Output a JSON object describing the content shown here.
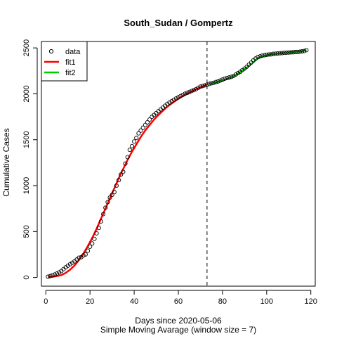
{
  "chart_data": {
    "type": "line",
    "title": "South_Sudan / Gompertz",
    "xlabel": "Days since 2020-05-06",
    "subtitle": "Simple Moving Avarage (window size = 7)",
    "ylabel": "Cumulative Cases",
    "xlim": [
      -2,
      122
    ],
    "ylim": [
      -95,
      2570
    ],
    "x_ticks": [
      0,
      20,
      40,
      60,
      80,
      100,
      120
    ],
    "y_ticks": [
      0,
      500,
      1000,
      1500,
      2000,
      2500
    ],
    "split_x": 73,
    "legend_position": "top-left",
    "colors": {
      "data": "#000000",
      "fit1": "#ff0000",
      "fit2": "#00cc00"
    },
    "series": [
      {
        "name": "data",
        "style": "points",
        "points": [
          [
            1,
            8
          ],
          [
            2,
            15
          ],
          [
            3,
            22
          ],
          [
            4,
            32
          ],
          [
            5,
            42
          ],
          [
            6,
            55
          ],
          [
            7,
            70
          ],
          [
            8,
            90
          ],
          [
            9,
            110
          ],
          [
            10,
            128
          ],
          [
            11,
            145
          ],
          [
            12,
            160
          ],
          [
            13,
            175
          ],
          [
            14,
            195
          ],
          [
            15,
            215
          ],
          [
            16,
            220
          ],
          [
            17,
            240
          ],
          [
            18,
            250
          ],
          [
            19,
            290
          ],
          [
            20,
            335
          ],
          [
            21,
            370
          ],
          [
            22,
            420
          ],
          [
            23,
            480
          ],
          [
            24,
            540
          ],
          [
            25,
            610
          ],
          [
            26,
            690
          ],
          [
            27,
            760
          ],
          [
            28,
            820
          ],
          [
            29,
            870
          ],
          [
            30,
            900
          ],
          [
            31,
            930
          ],
          [
            32,
            1000
          ],
          [
            33,
            1060
          ],
          [
            34,
            1120
          ],
          [
            35,
            1150
          ],
          [
            36,
            1240
          ],
          [
            37,
            1310
          ],
          [
            38,
            1390
          ],
          [
            39,
            1430
          ],
          [
            40,
            1480
          ],
          [
            41,
            1520
          ],
          [
            42,
            1570
          ],
          [
            43,
            1600
          ],
          [
            44,
            1630
          ],
          [
            45,
            1660
          ],
          [
            46,
            1690
          ],
          [
            47,
            1720
          ],
          [
            48,
            1750
          ],
          [
            49,
            1770
          ],
          [
            50,
            1790
          ],
          [
            51,
            1810
          ],
          [
            52,
            1830
          ],
          [
            53,
            1850
          ],
          [
            54,
            1870
          ],
          [
            55,
            1890
          ],
          [
            56,
            1905
          ],
          [
            57,
            1920
          ],
          [
            58,
            1935
          ],
          [
            59,
            1950
          ],
          [
            60,
            1962
          ],
          [
            61,
            1975
          ],
          [
            62,
            1988
          ],
          [
            63,
            2000
          ],
          [
            64,
            2010
          ],
          [
            65,
            2020
          ],
          [
            66,
            2030
          ],
          [
            67,
            2040
          ],
          [
            68,
            2050
          ],
          [
            69,
            2065
          ],
          [
            70,
            2078
          ],
          [
            71,
            2085
          ],
          [
            72,
            2092
          ],
          [
            73,
            2100
          ],
          [
            74,
            2108
          ],
          [
            75,
            2115
          ],
          [
            76,
            2120
          ],
          [
            77,
            2128
          ],
          [
            78,
            2135
          ],
          [
            79,
            2145
          ],
          [
            80,
            2155
          ],
          [
            81,
            2165
          ],
          [
            82,
            2172
          ],
          [
            83,
            2178
          ],
          [
            84,
            2185
          ],
          [
            85,
            2195
          ],
          [
            86,
            2210
          ],
          [
            87,
            2225
          ],
          [
            88,
            2240
          ],
          [
            89,
            2258
          ],
          [
            90,
            2275
          ],
          [
            91,
            2295
          ],
          [
            92,
            2318
          ],
          [
            93,
            2340
          ],
          [
            94,
            2365
          ],
          [
            95,
            2385
          ],
          [
            96,
            2400
          ],
          [
            97,
            2408
          ],
          [
            98,
            2415
          ],
          [
            99,
            2420
          ],
          [
            100,
            2425
          ],
          [
            101,
            2428
          ],
          [
            102,
            2430
          ],
          [
            103,
            2435
          ],
          [
            104,
            2437
          ],
          [
            105,
            2440
          ],
          [
            106,
            2442
          ],
          [
            107,
            2444
          ],
          [
            108,
            2446
          ],
          [
            109,
            2448
          ],
          [
            110,
            2450
          ],
          [
            111,
            2451
          ],
          [
            112,
            2453
          ],
          [
            113,
            2454
          ],
          [
            114,
            2456
          ],
          [
            115,
            2458
          ],
          [
            116,
            2462
          ],
          [
            117,
            2466
          ],
          [
            118,
            2476
          ]
        ]
      },
      {
        "name": "fit1",
        "style": "line",
        "points": [
          [
            1,
            5
          ],
          [
            3,
            8
          ],
          [
            5,
            15
          ],
          [
            7,
            25
          ],
          [
            9,
            50
          ],
          [
            11,
            85
          ],
          [
            13,
            130
          ],
          [
            15,
            190
          ],
          [
            17,
            260
          ],
          [
            19,
            340
          ],
          [
            21,
            430
          ],
          [
            23,
            530
          ],
          [
            25,
            640
          ],
          [
            27,
            750
          ],
          [
            29,
            860
          ],
          [
            31,
            970
          ],
          [
            33,
            1080
          ],
          [
            35,
            1180
          ],
          [
            37,
            1280
          ],
          [
            39,
            1370
          ],
          [
            41,
            1450
          ],
          [
            43,
            1530
          ],
          [
            45,
            1600
          ],
          [
            47,
            1660
          ],
          [
            49,
            1720
          ],
          [
            51,
            1770
          ],
          [
            53,
            1815
          ],
          [
            55,
            1860
          ],
          [
            57,
            1895
          ],
          [
            59,
            1930
          ],
          [
            61,
            1960
          ],
          [
            63,
            1990
          ],
          [
            65,
            2015
          ],
          [
            67,
            2040
          ],
          [
            69,
            2060
          ],
          [
            71,
            2080
          ],
          [
            73,
            2100
          ]
        ]
      },
      {
        "name": "fit2",
        "style": "line",
        "points": [
          [
            74,
            2105
          ],
          [
            76,
            2118
          ],
          [
            78,
            2130
          ],
          [
            80,
            2145
          ],
          [
            82,
            2160
          ],
          [
            84,
            2180
          ],
          [
            86,
            2205
          ],
          [
            88,
            2235
          ],
          [
            90,
            2268
          ],
          [
            92,
            2305
          ],
          [
            94,
            2345
          ],
          [
            96,
            2385
          ],
          [
            98,
            2408
          ],
          [
            100,
            2420
          ],
          [
            102,
            2428
          ],
          [
            104,
            2434
          ],
          [
            106,
            2440
          ],
          [
            108,
            2445
          ],
          [
            110,
            2450
          ],
          [
            112,
            2455
          ],
          [
            114,
            2460
          ],
          [
            116,
            2466
          ],
          [
            118,
            2474
          ]
        ]
      }
    ]
  }
}
